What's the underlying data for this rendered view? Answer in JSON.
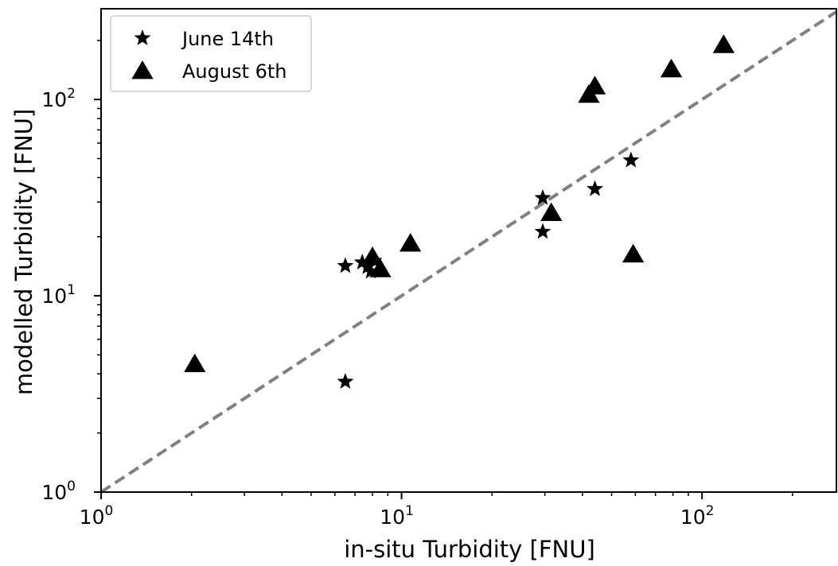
{
  "chart_data": {
    "type": "scatter",
    "xlabel": "in-situ Turbidity [FNU]",
    "ylabel": "modelled Turbidity [FNU]",
    "xscale": "log",
    "yscale": "log",
    "xlim": [
      1,
      280
    ],
    "ylim": [
      1,
      290
    ],
    "x_ticks": [
      {
        "value": 1,
        "base": "10",
        "exp": "0"
      },
      {
        "value": 10,
        "base": "10",
        "exp": "1"
      },
      {
        "value": 100,
        "base": "10",
        "exp": "2"
      }
    ],
    "y_ticks": [
      {
        "value": 1,
        "base": "10",
        "exp": "0"
      },
      {
        "value": 10,
        "base": "10",
        "exp": "1"
      },
      {
        "value": 100,
        "base": "10",
        "exp": "2"
      }
    ],
    "grid": false,
    "legend_position": "top-left",
    "reference_line": {
      "style": "dashed",
      "color": "#808080",
      "x": [
        1,
        280
      ],
      "y": [
        1,
        280
      ]
    },
    "series": [
      {
        "name": "June 14th",
        "marker": "star",
        "color": "#000000",
        "points": [
          [
            6.5,
            14.2
          ],
          [
            7.4,
            14.8
          ],
          [
            7.7,
            14.0
          ],
          [
            7.9,
            13.3
          ],
          [
            8.1,
            15.1
          ],
          [
            6.5,
            3.65
          ],
          [
            29.5,
            31.5
          ],
          [
            29.5,
            21.2
          ],
          [
            44,
            35
          ],
          [
            58,
            49
          ]
        ]
      },
      {
        "name": "August 6th",
        "marker": "triangle",
        "color": "#000000",
        "points": [
          [
            2.05,
            4.5
          ],
          [
            8.0,
            15.8
          ],
          [
            8.5,
            13.7
          ],
          [
            10.7,
            18.5
          ],
          [
            31.5,
            26.5
          ],
          [
            42,
            106
          ],
          [
            44,
            117
          ],
          [
            59,
            16.3
          ],
          [
            79,
            143
          ],
          [
            118,
            190
          ]
        ]
      }
    ]
  }
}
